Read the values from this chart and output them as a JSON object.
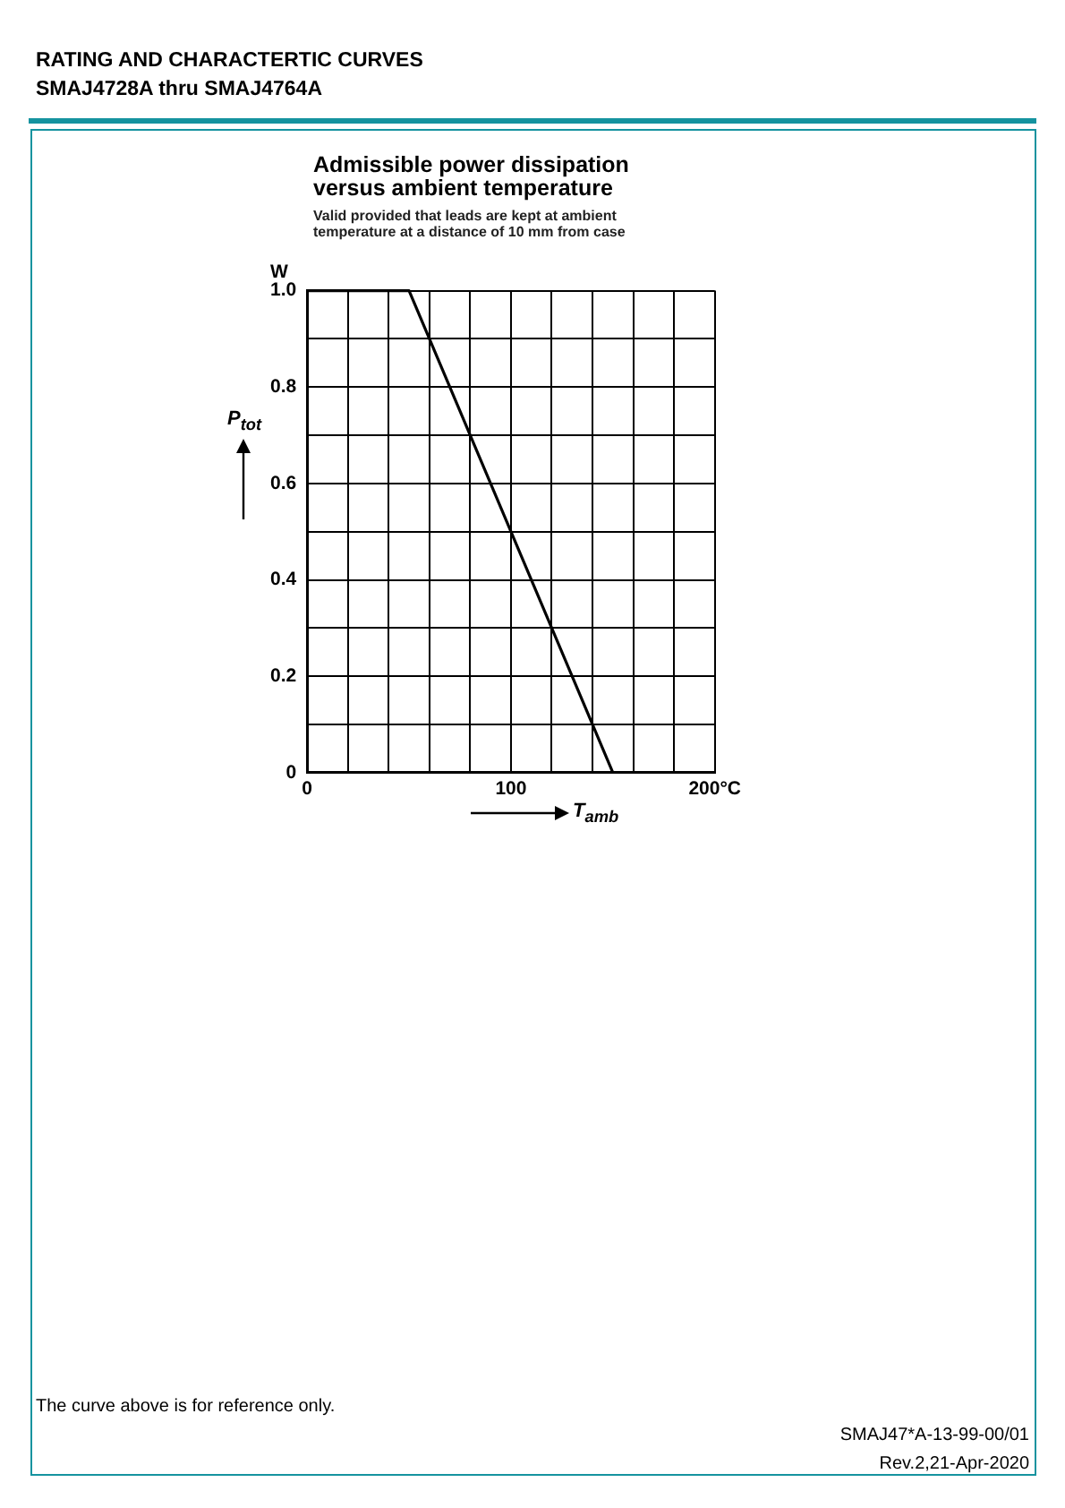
{
  "chart_data": {
    "type": "line",
    "title": "Admissible power dissipation versus ambient temperature",
    "subtitle": "Valid provided that leads are kept at ambient temperature at a distance of 10 mm from case",
    "xlabel": "T$_{amb}$",
    "ylabel": "P$_{tot}$",
    "x": [
      0,
      50,
      150
    ],
    "series": [
      {
        "color": "#000000",
        "values": [
          1,
          1,
          0
        ]
      }
    ],
    "xlim": [
      0,
      200
    ],
    "xticks": [
      0,
      {
        "value": 20,
        "label": null
      },
      {
        "value": 40,
        "label": null
      },
      {
        "value": 60,
        "label": null
      },
      {
        "value": 80,
        "label": null
      },
      100,
      {
        "value": 120,
        "label": null
      },
      {
        "value": 140,
        "label": null
      },
      {
        "value": 160,
        "label": null
      },
      {
        "value": 180,
        "label": null
      },
      {
        "value": 200,
        "label": "200°C"
      }
    ],
    "ylim": [
      0,
      1
    ],
    "yticks": [
      0,
      {
        "value": 0.1,
        "label": null
      },
      0.2,
      {
        "value": 0.3,
        "label": null
      },
      0.4,
      {
        "value": 0.5,
        "label": null
      },
      0.6,
      {
        "value": 0.7,
        "label": null
      },
      0.8,
      {
        "value": 0.9,
        "label": null
      },
      {
        "value": 1,
        "label": "1.0"
      }
    ],
    "grid": true,
    "marker": "none",
    "line_style": "solid",
    "legend": false,
    "annotations": [
      "RATING AND CHARACTERTIC CURVES",
      "SMAJ4728A thru SMAJ4764A",
      "The curve above is for reference only.",
      "SMAJ47*A-13-99-00/01",
      "Rev.2,21-Apr-2020",
      "W"
    ]
  }
}
